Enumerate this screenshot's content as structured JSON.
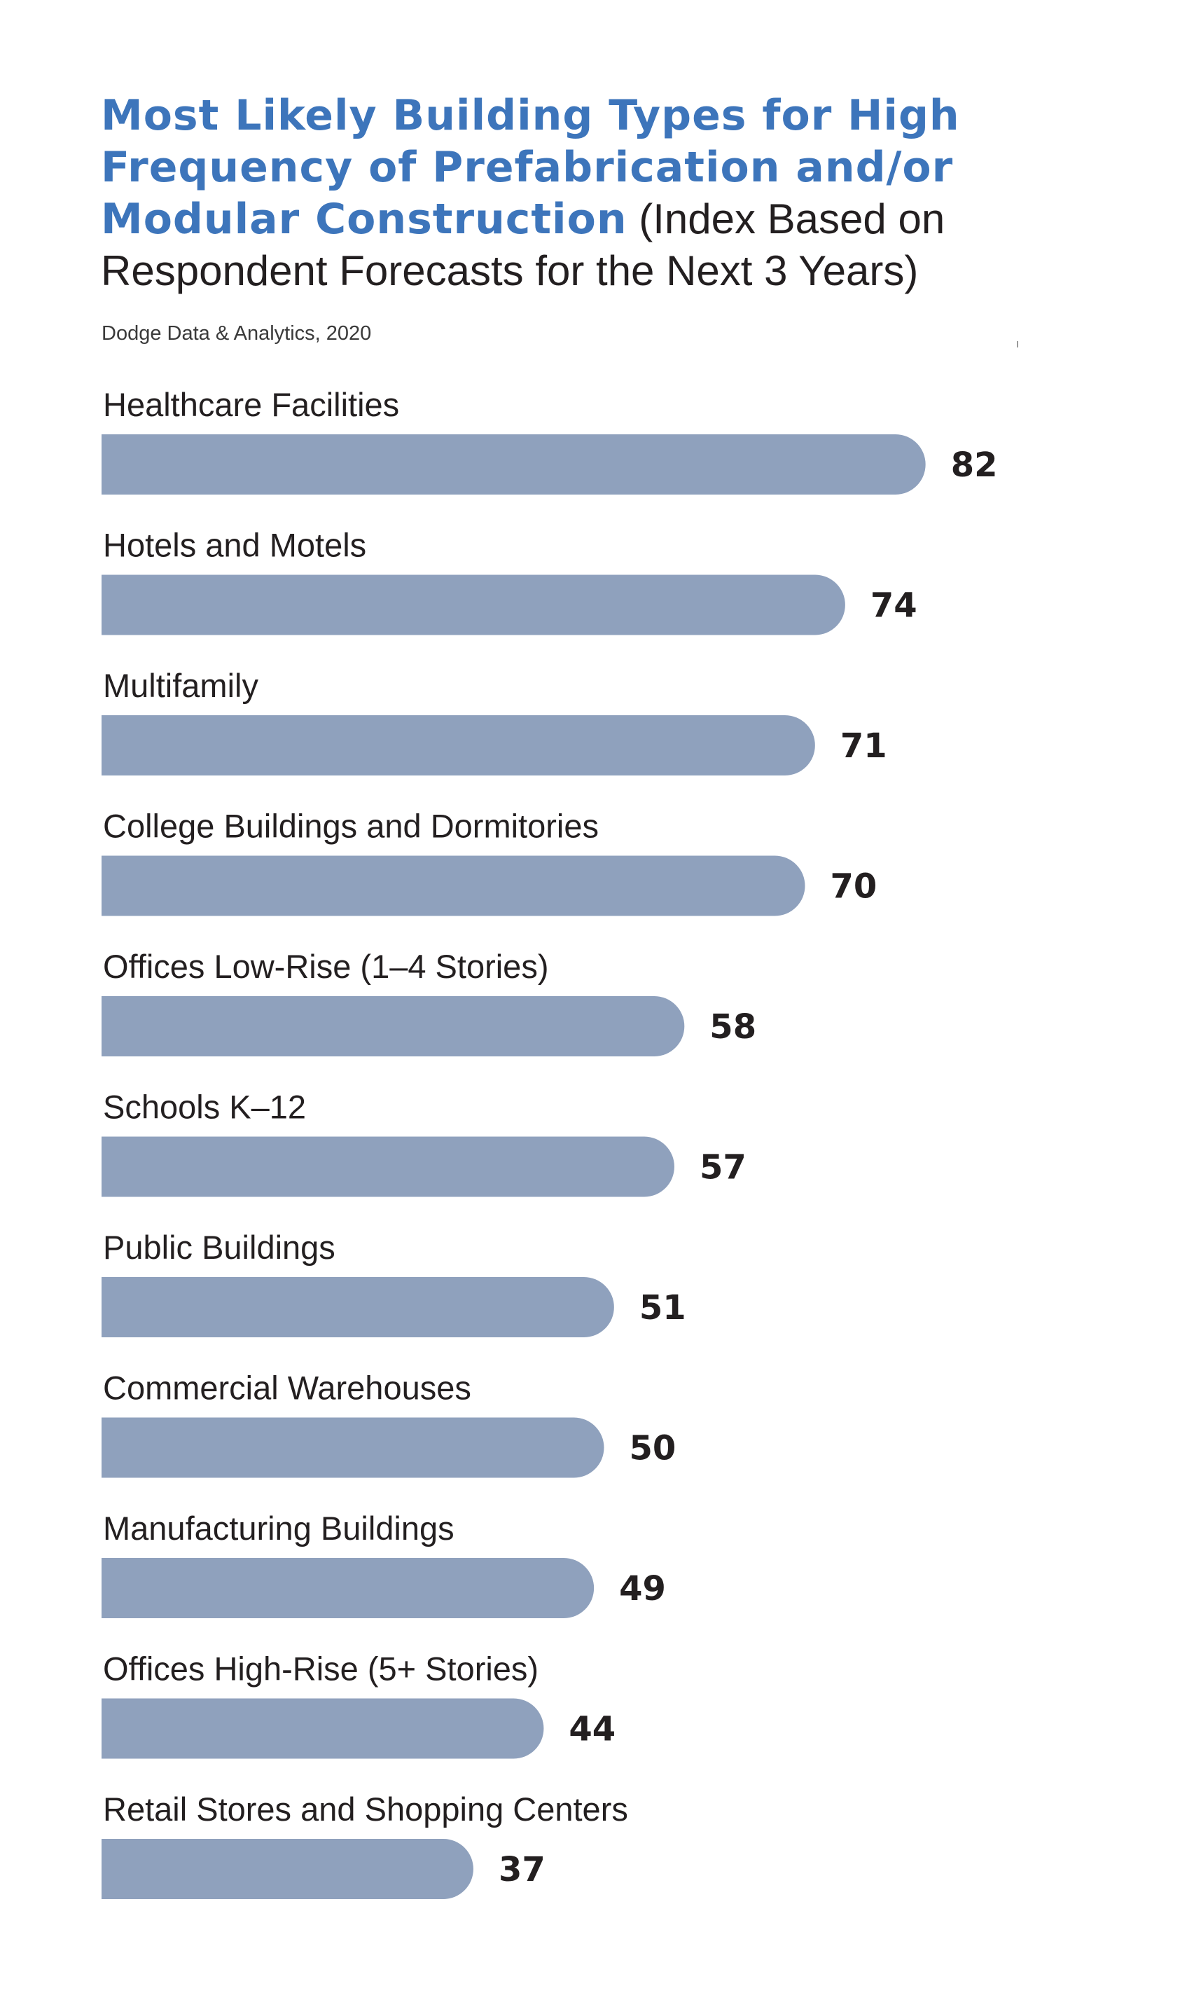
{
  "colors": {
    "title": "#3d75bb",
    "bar": "#8fa1bd",
    "text": "#231f20"
  },
  "header": {
    "title_bold": "Most Likely Building Types for High Frequency of Prefabrication and/or Modular Construction",
    "title_rest": "(Index Based on Respondent Forecasts for the Next 3 Years)",
    "source": "Dodge Data & Analytics, 2020"
  },
  "chart_data": {
    "type": "bar",
    "orientation": "horizontal",
    "title": "Most Likely Building Types for High Frequency of Prefabrication and/or Modular Construction (Index Based on Respondent Forecasts for the Next 3 Years)",
    "categories": [
      "Healthcare Facilities",
      "Hotels and Motels",
      "Multifamily",
      "College Buildings and Dormitories",
      "Offices Low-Rise (1–4 Stories)",
      "Schools K–12",
      "Public Buildings",
      "Commercial Warehouses",
      "Manufacturing Buildings",
      "Offices High-Rise (5+ Stories)",
      "Retail Stores and Shopping Centers"
    ],
    "values": [
      82,
      74,
      71,
      70,
      58,
      57,
      51,
      50,
      49,
      44,
      37
    ],
    "xlim": [
      0,
      100
    ],
    "grid": false,
    "legend": "none"
  }
}
